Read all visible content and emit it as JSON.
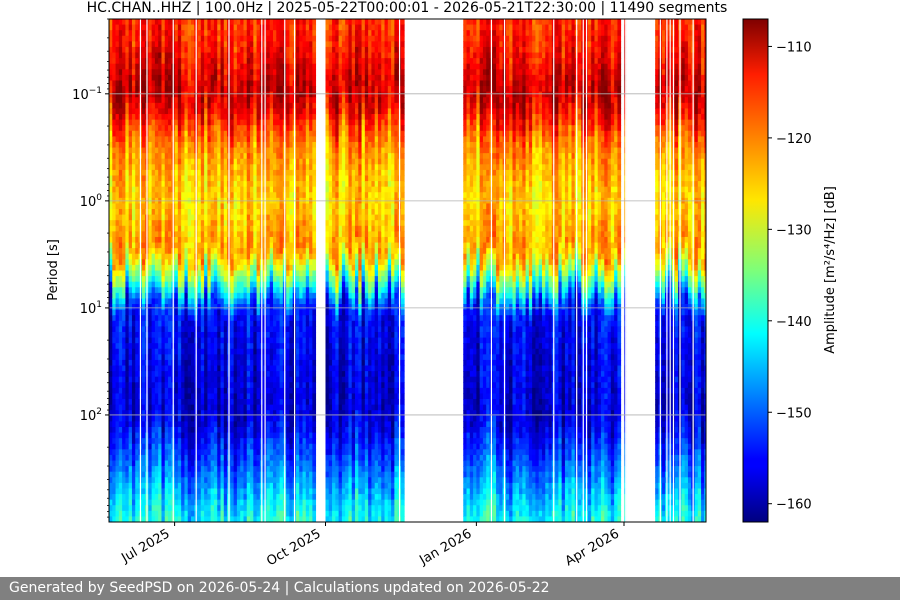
{
  "chart_data": {
    "type": "heatmap",
    "title": "HC.CHAN..HHZ | 100.0Hz | 2025-05-22T00:00:01 - 2026-05-21T22:30:00 | 11490 segments",
    "xlabel": "",
    "ylabel": "Period [s]",
    "x_range": [
      "2025-05-22",
      "2026-05-21"
    ],
    "y_range": [
      0.02,
      1000
    ],
    "y_scale": "log",
    "grid": true,
    "x_ticks": [
      {
        "label": "Jul 2025",
        "date": "2025-07-01"
      },
      {
        "label": "Oct 2025",
        "date": "2025-10-01"
      },
      {
        "label": "Jan 2026",
        "date": "2026-01-01"
      },
      {
        "label": "Apr 2026",
        "date": "2026-04-01"
      }
    ],
    "y_ticks": [
      {
        "label": "10",
        "exp": "−1",
        "value": 0.1
      },
      {
        "label": "10",
        "exp": "0",
        "value": 1
      },
      {
        "label": "10",
        "exp": "1",
        "value": 10
      },
      {
        "label": "10",
        "exp": "2",
        "value": 100
      }
    ],
    "data_segments": [
      [
        "2025-05-22",
        "2025-09-24"
      ],
      [
        "2025-10-01",
        "2025-11-18"
      ],
      [
        "2025-12-24",
        "2026-03-29"
      ],
      [
        "2026-04-01",
        "2026-04-02"
      ],
      [
        "2026-04-20",
        "2026-05-21"
      ]
    ],
    "typical_profile": [
      {
        "period": 0.03,
        "amplitude_db": -116
      },
      {
        "period": 0.1,
        "amplitude_db": -110
      },
      {
        "period": 0.3,
        "amplitude_db": -122
      },
      {
        "period": 1,
        "amplitude_db": -126
      },
      {
        "period": 3,
        "amplitude_db": -122
      },
      {
        "period": 6,
        "amplitude_db": -140
      },
      {
        "period": 10,
        "amplitude_db": -155
      },
      {
        "period": 100,
        "amplitude_db": -158
      },
      {
        "period": 300,
        "amplitude_db": -150
      },
      {
        "period": 1000,
        "amplitude_db": -140
      }
    ],
    "colorbar": {
      "label": "Amplitude [m²/s⁴/Hz] [dB]",
      "colormap": "jet",
      "range": [
        -162,
        -107
      ],
      "ticks": [
        -110,
        -120,
        -130,
        -140,
        -150,
        -160
      ]
    }
  },
  "footer": {
    "text": "Generated by SeedPSD on 2026-05-24 | Calculations updated on 2026-05-22"
  }
}
